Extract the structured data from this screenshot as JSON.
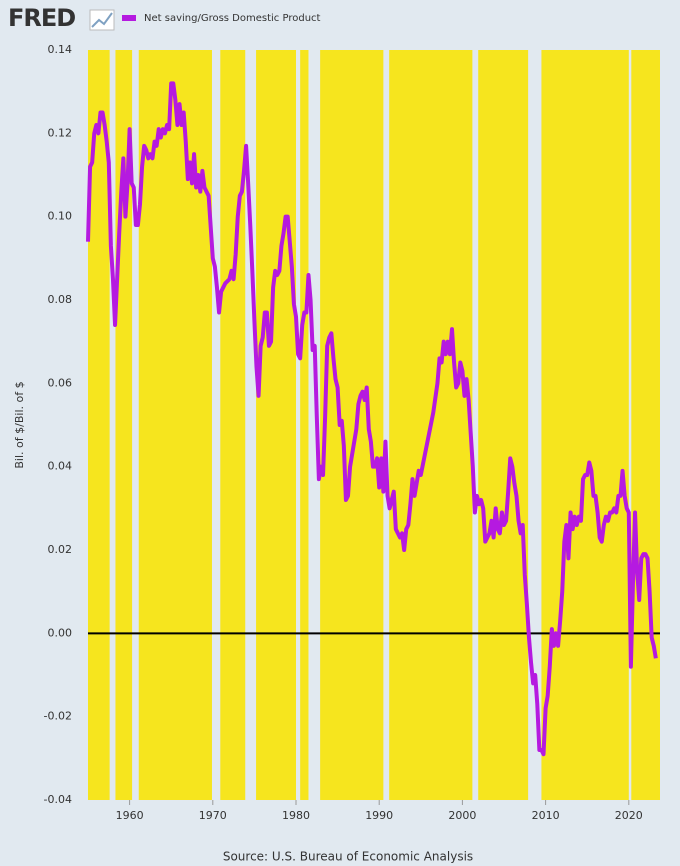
{
  "chart_data": {
    "type": "line",
    "logo": "FRED",
    "source": "Source: U.S. Bureau of Economic Analysis",
    "y_label": "Bil. of $/Bil. of $",
    "xlim": [
      1955,
      2023.75
    ],
    "ylim": [
      -0.04,
      0.14
    ],
    "xticks": [
      1960,
      1970,
      1980,
      1990,
      2000,
      2010,
      2020
    ],
    "yticks": [
      -0.04,
      -0.02,
      {
        "value": 0,
        "label": "0.00"
      },
      0.02,
      0.04,
      0.06,
      0.08,
      {
        "value": 0.1,
        "label": "0.10"
      },
      0.12,
      0.14
    ],
    "reference_line": 0,
    "plot_color": "#f6e51e",
    "recession_color": "#e1e9f0",
    "recessions": [
      [
        1957.6,
        1958.3
      ],
      [
        1960.3,
        1961.1
      ],
      [
        1969.9,
        1970.9
      ],
      [
        1973.9,
        1975.2
      ],
      [
        1980.0,
        1980.5
      ],
      [
        1981.5,
        1982.9
      ],
      [
        1990.5,
        1991.2
      ],
      [
        2001.2,
        2001.9
      ],
      [
        2007.9,
        2009.5
      ],
      [
        2020.0,
        2020.3
      ]
    ],
    "x": [
      1955.0,
      1955.25,
      1955.5,
      1955.75,
      1956.0,
      1956.25,
      1956.5,
      1956.75,
      1957.0,
      1957.25,
      1957.5,
      1957.75,
      1958.0,
      1958.25,
      1958.5,
      1958.75,
      1959.0,
      1959.25,
      1959.5,
      1959.75,
      1960.0,
      1960.25,
      1960.5,
      1960.75,
      1961.0,
      1961.25,
      1961.5,
      1961.75,
      1962.0,
      1962.25,
      1962.5,
      1962.75,
      1963.0,
      1963.25,
      1963.5,
      1963.75,
      1964.0,
      1964.25,
      1964.5,
      1964.75,
      1965.0,
      1965.25,
      1965.5,
      1965.75,
      1966.0,
      1966.25,
      1966.5,
      1966.75,
      1967.0,
      1967.25,
      1967.5,
      1967.75,
      1968.0,
      1968.25,
      1968.5,
      1968.75,
      1969.0,
      1969.5,
      1970.0,
      1970.25,
      1970.5,
      1970.75,
      1971.0,
      1971.5,
      1972.0,
      1972.25,
      1972.5,
      1972.75,
      1973.0,
      1973.25,
      1973.5,
      1973.75,
      1974.0,
      1974.25,
      1974.5,
      1974.75,
      1975.0,
      1975.25,
      1975.5,
      1975.75,
      1976.0,
      1976.25,
      1976.5,
      1976.75,
      1977.0,
      1977.25,
      1977.5,
      1977.75,
      1978.0,
      1978.25,
      1978.5,
      1978.75,
      1979.0,
      1979.25,
      1979.5,
      1979.75,
      1980.0,
      1980.25,
      1980.5,
      1980.75,
      1981.0,
      1981.25,
      1981.5,
      1981.75,
      1982.0,
      1982.25,
      1982.5,
      1982.75,
      1983.0,
      1983.25,
      1983.5,
      1983.75,
      1984.0,
      1984.25,
      1984.5,
      1984.75,
      1985.0,
      1985.25,
      1985.5,
      1985.75,
      1986.0,
      1986.25,
      1986.5,
      1986.75,
      1987.0,
      1987.25,
      1987.5,
      1987.75,
      1988.0,
      1988.25,
      1988.5,
      1988.75,
      1989.0,
      1989.25,
      1989.5,
      1989.75,
      1990.0,
      1990.25,
      1990.5,
      1990.75,
      1991.0,
      1991.25,
      1991.5,
      1991.75,
      1992.0,
      1992.5,
      1992.75,
      1993.0,
      1993.25,
      1993.5,
      1993.75,
      1994.0,
      1994.25,
      1994.5,
      1994.75,
      1995.0,
      1995.5,
      1996.0,
      1996.5,
      1997.0,
      1997.25,
      1997.5,
      1997.75,
      1998.0,
      1998.25,
      1998.5,
      1998.75,
      1999.0,
      1999.25,
      1999.5,
      1999.75,
      2000.0,
      2000.25,
      2000.5,
      2000.75,
      2001.0,
      2001.25,
      2001.5,
      2001.75,
      2002.0,
      2002.25,
      2002.5,
      2002.75,
      2003.0,
      2003.25,
      2003.5,
      2003.75,
      2004.0,
      2004.25,
      2004.5,
      2004.75,
      2005.0,
      2005.25,
      2005.5,
      2005.75,
      2006.0,
      2006.25,
      2006.5,
      2006.75,
      2007.0,
      2007.25,
      2007.5,
      2007.75,
      2008.0,
      2008.25,
      2008.5,
      2008.75,
      2009.0,
      2009.25,
      2009.5,
      2009.75,
      2010.0,
      2010.25,
      2010.5,
      2010.75,
      2011.0,
      2011.25,
      2011.5,
      2011.75,
      2012.0,
      2012.25,
      2012.5,
      2012.75,
      2013.0,
      2013.25,
      2013.5,
      2013.75,
      2014.0,
      2014.25,
      2014.5,
      2014.75,
      2015.0,
      2015.25,
      2015.5,
      2015.75,
      2016.0,
      2016.25,
      2016.5,
      2016.75,
      2017.0,
      2017.25,
      2017.5,
      2017.75,
      2018.0,
      2018.25,
      2018.5,
      2018.75,
      2019.0,
      2019.25,
      2019.5,
      2019.75,
      2020.0,
      2020.25,
      2020.5,
      2020.75,
      2021.0,
      2021.25,
      2021.5,
      2021.75,
      2022.0,
      2022.25,
      2022.5,
      2022.75,
      2023.0,
      2023.25
    ],
    "series": [
      {
        "name": "Net saving/Gross Domestic Product",
        "color": "#b51ae0",
        "values": [
          0.094,
          0.112,
          0.113,
          0.12,
          0.122,
          0.12,
          0.125,
          0.125,
          0.122,
          0.118,
          0.113,
          0.093,
          0.085,
          0.074,
          0.085,
          0.096,
          0.106,
          0.114,
          0.1,
          0.108,
          0.121,
          0.108,
          0.107,
          0.098,
          0.098,
          0.103,
          0.112,
          0.117,
          0.116,
          0.114,
          0.115,
          0.114,
          0.118,
          0.117,
          0.121,
          0.119,
          0.121,
          0.12,
          0.122,
          0.121,
          0.132,
          0.132,
          0.128,
          0.122,
          0.127,
          0.122,
          0.125,
          0.118,
          0.109,
          0.113,
          0.108,
          0.115,
          0.107,
          0.11,
          0.106,
          0.111,
          0.107,
          0.105,
          0.09,
          0.088,
          0.083,
          0.077,
          0.082,
          0.084,
          0.085,
          0.087,
          0.085,
          0.091,
          0.1,
          0.105,
          0.106,
          0.111,
          0.117,
          0.108,
          0.098,
          0.087,
          0.075,
          0.064,
          0.057,
          0.069,
          0.071,
          0.077,
          0.077,
          0.069,
          0.07,
          0.083,
          0.087,
          0.086,
          0.087,
          0.093,
          0.096,
          0.1,
          0.1,
          0.094,
          0.088,
          0.079,
          0.076,
          0.067,
          0.066,
          0.074,
          0.077,
          0.077,
          0.086,
          0.08,
          0.068,
          0.069,
          0.052,
          0.037,
          0.04,
          0.038,
          0.052,
          0.069,
          0.071,
          0.072,
          0.066,
          0.061,
          0.059,
          0.05,
          0.051,
          0.045,
          0.032,
          0.033,
          0.04,
          0.043,
          0.046,
          0.049,
          0.055,
          0.057,
          0.058,
          0.056,
          0.059,
          0.049,
          0.046,
          0.04,
          0.04,
          0.042,
          0.035,
          0.042,
          0.034,
          0.046,
          0.033,
          0.03,
          0.032,
          0.034,
          0.025,
          0.023,
          0.024,
          0.02,
          0.025,
          0.026,
          0.031,
          0.037,
          0.033,
          0.036,
          0.039,
          0.038,
          0.043,
          0.048,
          0.053,
          0.06,
          0.066,
          0.065,
          0.07,
          0.067,
          0.07,
          0.067,
          0.073,
          0.065,
          0.059,
          0.06,
          0.065,
          0.063,
          0.057,
          0.061,
          0.056,
          0.048,
          0.04,
          0.029,
          0.033,
          0.031,
          0.032,
          0.03,
          0.022,
          0.023,
          0.024,
          0.027,
          0.023,
          0.03,
          0.025,
          0.024,
          0.029,
          0.026,
          0.027,
          0.034,
          0.042,
          0.04,
          0.036,
          0.033,
          0.027,
          0.024,
          0.026,
          0.014,
          0.007,
          -0.001,
          -0.007,
          -0.012,
          -0.01,
          -0.017,
          -0.028,
          -0.028,
          -0.029,
          -0.018,
          -0.015,
          -0.008,
          0.001,
          -0.003,
          0.0,
          -0.003,
          0.003,
          0.01,
          0.022,
          0.026,
          0.018,
          0.029,
          0.025,
          0.028,
          0.026,
          0.028,
          0.027,
          0.037,
          0.038,
          0.038,
          0.041,
          0.039,
          0.033,
          0.033,
          0.029,
          0.023,
          0.022,
          0.026,
          0.028,
          0.027,
          0.029,
          0.029,
          0.03,
          0.029,
          0.033,
          0.033,
          0.039,
          0.033,
          0.03,
          0.029,
          -0.008,
          0.012,
          0.029,
          0.015,
          0.008,
          0.018,
          0.019,
          0.019,
          0.018,
          0.01,
          -0.001,
          -0.003,
          -0.006
        ]
      }
    ]
  }
}
